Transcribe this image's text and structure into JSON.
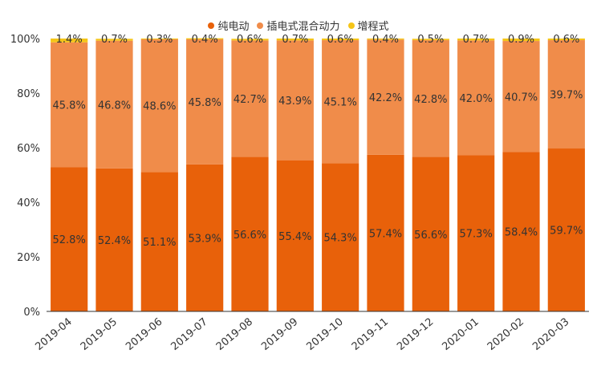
{
  "chart_data": {
    "type": "bar",
    "stacked": true,
    "percent_stacked": true,
    "categories": [
      "2019-04",
      "2019-05",
      "2019-06",
      "2019-07",
      "2019-08",
      "2019-09",
      "2019-10",
      "2019-11",
      "2019-12",
      "2020-01",
      "2020-02",
      "2020-03"
    ],
    "series": [
      {
        "name": "纯电动",
        "color": "#E8610A",
        "values": [
          52.8,
          52.4,
          51.1,
          53.9,
          56.6,
          55.4,
          54.3,
          57.4,
          56.6,
          57.3,
          58.4,
          59.7
        ],
        "labels": [
          "52.8%",
          "52.4%",
          "51.1%",
          "53.9%",
          "56.6%",
          "55.4%",
          "54.3%",
          "57.4%",
          "56.6%",
          "57.3%",
          "58.4%",
          "59.7%"
        ]
      },
      {
        "name": "插电式混合动力",
        "color": "#F08C4A",
        "values": [
          45.8,
          46.8,
          48.6,
          45.8,
          42.7,
          43.9,
          45.1,
          42.2,
          42.8,
          42.0,
          40.7,
          39.7
        ],
        "labels": [
          "45.8%",
          "46.8%",
          "48.6%",
          "45.8%",
          "42.7%",
          "43.9%",
          "45.1%",
          "42.2%",
          "42.8%",
          "42.0%",
          "40.7%",
          "39.7%"
        ]
      },
      {
        "name": "增程式",
        "color": "#F5C518",
        "values": [
          1.4,
          0.7,
          0.3,
          0.4,
          0.6,
          0.7,
          0.6,
          0.4,
          0.5,
          0.7,
          0.9,
          0.6
        ],
        "labels": [
          "1.4%",
          "0.7%",
          "0.3%",
          "0.4%",
          "0.6%",
          "0.7%",
          "0.6%",
          "0.4%",
          "0.5%",
          "0.7%",
          "0.9%",
          "0.6%"
        ]
      }
    ],
    "ylim": [
      0,
      100
    ],
    "yticks": [
      "0%",
      "20%",
      "40%",
      "60%",
      "80%",
      "100%"
    ],
    "legend_position": "top-center",
    "grid": false,
    "title": "",
    "xlabel": "",
    "ylabel": ""
  }
}
